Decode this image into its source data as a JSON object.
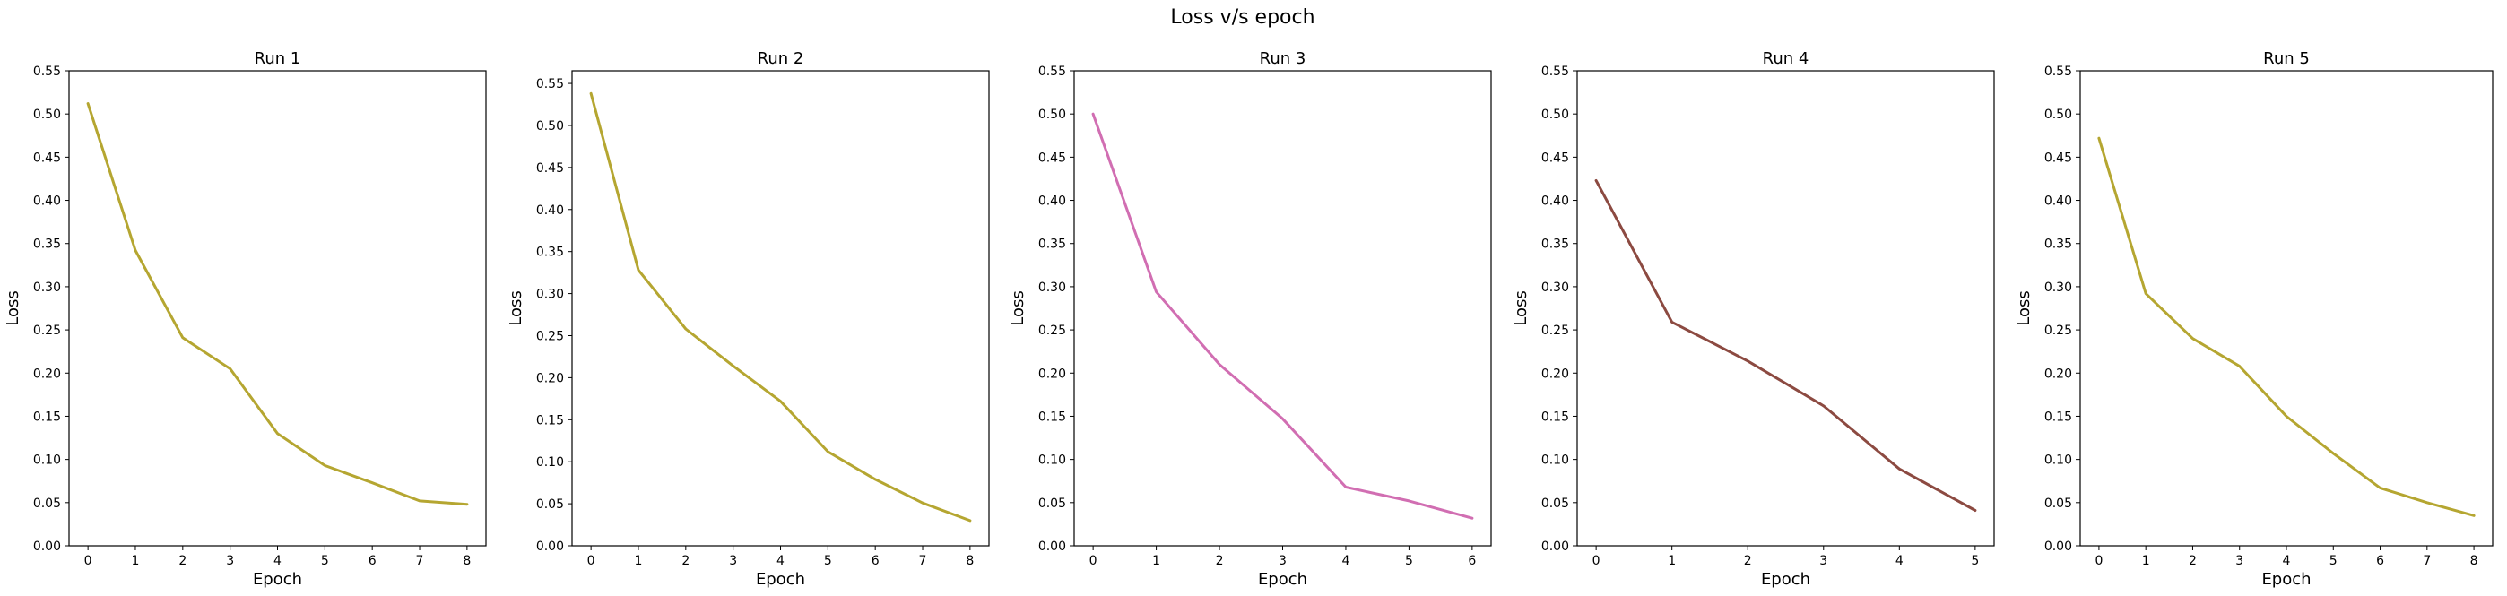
{
  "suptitle": "Loss v/s epoch",
  "chart_data": [
    {
      "type": "line",
      "title": "Run 1",
      "xlabel": "Epoch",
      "ylabel": "Loss",
      "xlim": [
        -0.4,
        8.4
      ],
      "ylim": [
        0,
        0.55
      ],
      "xticks": [
        0,
        1,
        2,
        3,
        4,
        5,
        6,
        7,
        8
      ],
      "yticks": [
        "0.00",
        "0.05",
        "0.10",
        "0.15",
        "0.20",
        "0.25",
        "0.30",
        "0.35",
        "0.40",
        "0.45",
        "0.50",
        "0.55"
      ],
      "grid": false,
      "color": "#b5a631",
      "x": [
        0,
        1,
        2,
        3,
        4,
        5,
        6,
        7,
        8
      ],
      "y": [
        0.512,
        0.342,
        0.241,
        0.205,
        0.13,
        0.093,
        0.073,
        0.052,
        0.048
      ]
    },
    {
      "type": "line",
      "title": "Run 2",
      "xlabel": "Epoch",
      "ylabel": "Loss",
      "xlim": [
        -0.4,
        8.4
      ],
      "ylim": [
        0,
        0.565
      ],
      "xticks": [
        0,
        1,
        2,
        3,
        4,
        5,
        6,
        7,
        8
      ],
      "yticks": [
        "0.00",
        "0.05",
        "0.10",
        "0.15",
        "0.20",
        "0.25",
        "0.30",
        "0.35",
        "0.40",
        "0.45",
        "0.50",
        "0.55"
      ],
      "grid": false,
      "color": "#b5a631",
      "x": [
        0,
        1,
        2,
        3,
        4,
        5,
        6,
        7,
        8
      ],
      "y": [
        0.538,
        0.328,
        0.258,
        0.214,
        0.172,
        0.112,
        0.079,
        0.051,
        0.03
      ]
    },
    {
      "type": "line",
      "title": "Run 3",
      "xlabel": "Epoch",
      "ylabel": "Loss",
      "xlim": [
        -0.3,
        6.3
      ],
      "ylim": [
        0,
        0.55
      ],
      "xticks": [
        0,
        1,
        2,
        3,
        4,
        5,
        6
      ],
      "yticks": [
        "0.00",
        "0.05",
        "0.10",
        "0.15",
        "0.20",
        "0.25",
        "0.30",
        "0.35",
        "0.40",
        "0.45",
        "0.50",
        "0.55"
      ],
      "grid": false,
      "color": "#d16eb2",
      "x": [
        0,
        1,
        2,
        3,
        4,
        5,
        6
      ],
      "y": [
        0.5,
        0.294,
        0.21,
        0.147,
        0.068,
        0.052,
        0.032
      ]
    },
    {
      "type": "line",
      "title": "Run 4",
      "xlabel": "Epoch",
      "ylabel": "Loss",
      "xlim": [
        -0.25,
        5.25
      ],
      "ylim": [
        0,
        0.55
      ],
      "xticks": [
        0,
        1,
        2,
        3,
        4,
        5
      ],
      "yticks": [
        "0.00",
        "0.05",
        "0.10",
        "0.15",
        "0.20",
        "0.25",
        "0.30",
        "0.35",
        "0.40",
        "0.45",
        "0.50",
        "0.55"
      ],
      "grid": false,
      "color": "#8c4a41",
      "x": [
        0,
        1,
        2,
        3,
        4,
        5
      ],
      "y": [
        0.423,
        0.259,
        0.214,
        0.162,
        0.089,
        0.041
      ]
    },
    {
      "type": "line",
      "title": "Run 5",
      "xlabel": "Epoch",
      "ylabel": "Loss",
      "xlim": [
        -0.4,
        8.4
      ],
      "ylim": [
        0,
        0.55
      ],
      "xticks": [
        0,
        1,
        2,
        3,
        4,
        5,
        6,
        7,
        8
      ],
      "yticks": [
        "0.00",
        "0.05",
        "0.10",
        "0.15",
        "0.20",
        "0.25",
        "0.30",
        "0.35",
        "0.40",
        "0.45",
        "0.50",
        "0.55"
      ],
      "grid": false,
      "color": "#b5a631",
      "x": [
        0,
        1,
        2,
        3,
        4,
        5,
        6,
        7,
        8
      ],
      "y": [
        0.472,
        0.292,
        0.24,
        0.208,
        0.15,
        0.107,
        0.067,
        0.05,
        0.035
      ]
    }
  ]
}
